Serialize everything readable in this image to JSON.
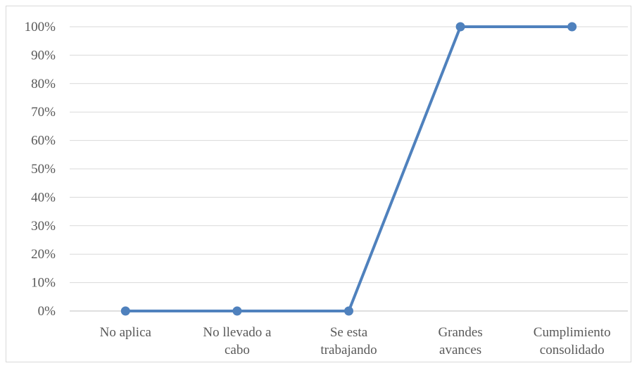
{
  "chart_data": {
    "type": "line",
    "title": "",
    "xlabel": "",
    "ylabel": "",
    "categories": [
      [
        "No aplica"
      ],
      [
        "No llevado a",
        "cabo"
      ],
      [
        "Se esta",
        "trabajando"
      ],
      [
        "Grandes",
        "avances"
      ],
      [
        "Cumplimiento",
        "consolidado"
      ]
    ],
    "series": [
      {
        "values": [
          0,
          0,
          0,
          100,
          100
        ]
      }
    ],
    "ylim": [
      0,
      100
    ],
    "yticks": [
      "0%",
      "10%",
      "20%",
      "30%",
      "40%",
      "50%",
      "60%",
      "70%",
      "80%",
      "90%",
      "100%"
    ],
    "grid": true,
    "legend": "none",
    "colors": {
      "line": "#4f81bd",
      "grid": "#d9d9d9",
      "axis": "#bfbfbf",
      "text": "#595959"
    }
  }
}
